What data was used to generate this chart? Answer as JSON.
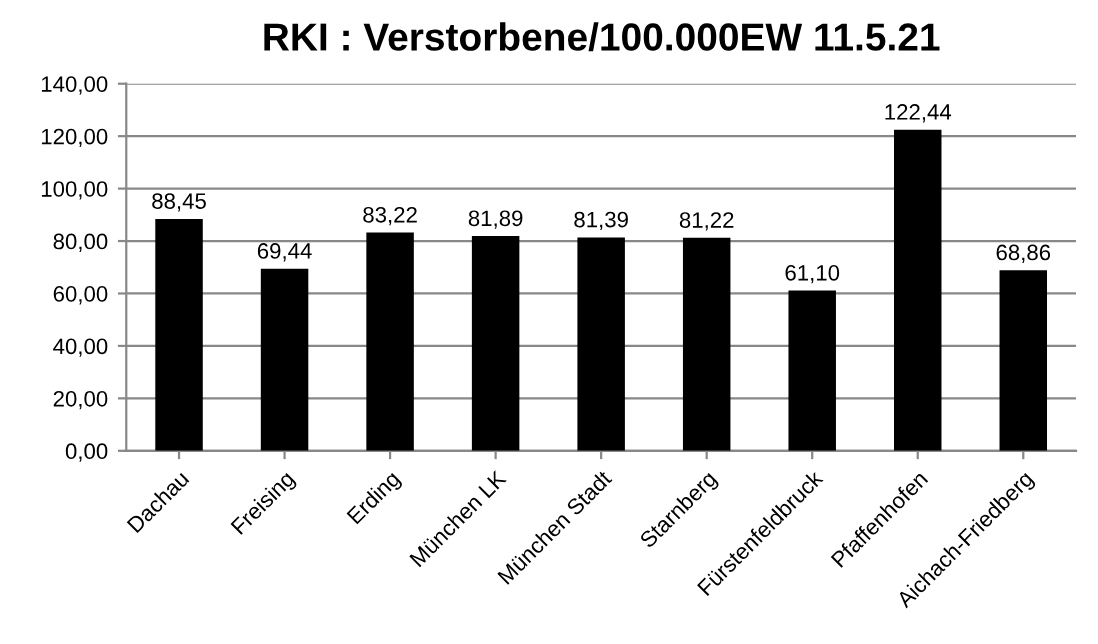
{
  "chart_data": {
    "type": "bar",
    "title": "RKI : Verstorbene/100.000EW 11.5.21",
    "categories": [
      "Dachau",
      "Freising",
      "Erding",
      "München LK",
      "München Stadt",
      "Starnberg",
      "Fürstenfeldbruck",
      "Pfaffenhofen",
      "Aichach-Friedberg"
    ],
    "values": [
      88.45,
      69.44,
      83.22,
      81.89,
      81.39,
      81.22,
      61.1,
      122.44,
      68.86
    ],
    "value_labels": [
      "88,45",
      "69,44",
      "83,22",
      "81,89",
      "81,39",
      "81,22",
      "61,10",
      "122,44",
      "68,86"
    ],
    "color": "#000000",
    "ylim": [
      0,
      140
    ],
    "yticks": [
      {
        "value": 0,
        "label": "0,00"
      },
      {
        "value": 20,
        "label": "20,00"
      },
      {
        "value": 40,
        "label": "40,00"
      },
      {
        "value": 60,
        "label": "60,00"
      },
      {
        "value": 80,
        "label": "80,00"
      },
      {
        "value": 100,
        "label": "100,00"
      },
      {
        "value": 120,
        "label": "120,00"
      },
      {
        "value": 140,
        "label": "140,00"
      }
    ],
    "grid": "y"
  }
}
